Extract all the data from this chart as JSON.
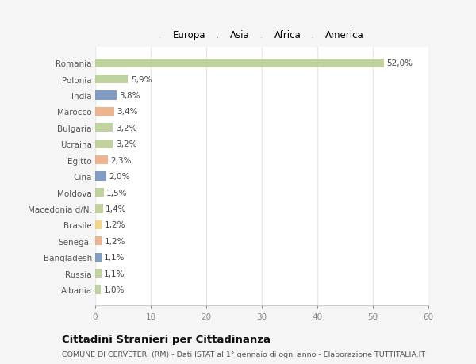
{
  "categories": [
    "Romania",
    "Polonia",
    "India",
    "Marocco",
    "Bulgaria",
    "Ucraina",
    "Egitto",
    "Cina",
    "Moldova",
    "Macedonia d/N.",
    "Brasile",
    "Senegal",
    "Bangladesh",
    "Russia",
    "Albania"
  ],
  "values": [
    52.0,
    5.9,
    3.8,
    3.4,
    3.2,
    3.2,
    2.3,
    2.0,
    1.5,
    1.4,
    1.2,
    1.2,
    1.1,
    1.1,
    1.0
  ],
  "labels": [
    "52,0%",
    "5,9%",
    "3,8%",
    "3,4%",
    "3,2%",
    "3,2%",
    "2,3%",
    "2,0%",
    "1,5%",
    "1,4%",
    "1,2%",
    "1,2%",
    "1,1%",
    "1,1%",
    "1,0%"
  ],
  "continent": [
    "Europa",
    "Europa",
    "Asia",
    "Africa",
    "Europa",
    "Europa",
    "Africa",
    "Asia",
    "Europa",
    "Europa",
    "America",
    "Africa",
    "Asia",
    "Europa",
    "Europa"
  ],
  "colors": {
    "Europa": "#b5cc8e",
    "Asia": "#6b8cba",
    "Africa": "#e8a87c",
    "America": "#f0d070"
  },
  "legend_order": [
    "Europa",
    "Asia",
    "Africa",
    "America"
  ],
  "xlim": [
    0,
    60
  ],
  "xticks": [
    0,
    10,
    20,
    30,
    40,
    50,
    60
  ],
  "title": "Cittadini Stranieri per Cittadinanza",
  "subtitle": "COMUNE DI CERVETERI (RM) - Dati ISTAT al 1° gennaio di ogni anno - Elaborazione TUTTITALIA.IT",
  "outer_bg": "#f5f5f5",
  "plot_bg": "#ffffff",
  "grid_color": "#e8e8e8",
  "bar_height": 0.55
}
